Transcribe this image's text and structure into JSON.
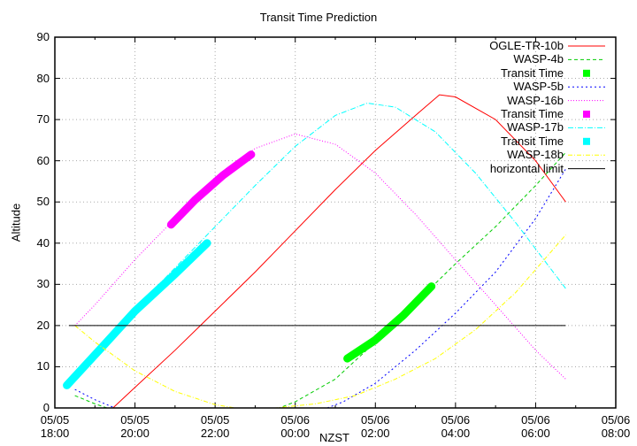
{
  "chart_data": {
    "type": "line",
    "title": "Transit Time Prediction",
    "xlabel": "NZST",
    "ylabel": "Altitude",
    "ylim": [
      0,
      90
    ],
    "yticks": [
      0,
      10,
      20,
      30,
      40,
      50,
      60,
      70,
      80,
      90
    ],
    "xlim_hours_from_start": [
      0,
      14
    ],
    "xticks": [
      {
        "h": 0,
        "date": "05/05",
        "time": "18:00"
      },
      {
        "h": 2,
        "date": "05/05",
        "time": "20:00"
      },
      {
        "h": 4,
        "date": "05/05",
        "time": "22:00"
      },
      {
        "h": 6,
        "date": "05/06",
        "time": "00:00"
      },
      {
        "h": 8,
        "date": "05/06",
        "time": "02:00"
      },
      {
        "h": 10,
        "date": "05/06",
        "time": "04:00"
      },
      {
        "h": 12,
        "date": "05/06",
        "time": "06:00"
      },
      {
        "h": 14,
        "date": "05/06",
        "time": "08:00"
      }
    ],
    "grid": true,
    "legend_position": "top-right",
    "series": [
      {
        "name": "OGLE-TR-10b",
        "kind": "line",
        "color": "#ff0000",
        "dash": "",
        "points": [
          [
            1.45,
            0
          ],
          [
            2,
            5
          ],
          [
            3,
            14
          ],
          [
            4,
            23.5
          ],
          [
            5,
            33
          ],
          [
            6,
            43
          ],
          [
            7,
            53
          ],
          [
            8,
            62.5
          ],
          [
            9,
            71
          ],
          [
            9.6,
            76
          ],
          [
            10,
            75.5
          ],
          [
            11,
            70
          ],
          [
            12,
            60
          ],
          [
            12.75,
            50
          ]
        ]
      },
      {
        "name": "WASP-4b",
        "kind": "line",
        "color": "#00cc00",
        "dash": "4,3",
        "points": [
          [
            0.5,
            3
          ],
          [
            1,
            1
          ],
          [
            1.3,
            0
          ],
          [
            5.6,
            0
          ],
          [
            6,
            1.5
          ],
          [
            7,
            7
          ],
          [
            8,
            16
          ],
          [
            9,
            25.5
          ],
          [
            10,
            35
          ],
          [
            11,
            44
          ],
          [
            12,
            54
          ],
          [
            12.75,
            62
          ]
        ]
      },
      {
        "name": "Transit Time",
        "kind": "transit",
        "color": "#00ff00",
        "for": "WASP-4b",
        "points": [
          [
            7.3,
            12
          ],
          [
            8,
            16.5
          ],
          [
            8.7,
            22.5
          ],
          [
            9.4,
            29.5
          ]
        ]
      },
      {
        "name": "WASP-5b",
        "kind": "line",
        "color": "#0000ff",
        "dash": "2,3",
        "points": [
          [
            0.5,
            4.5
          ],
          [
            1,
            2
          ],
          [
            1.5,
            0
          ],
          [
            6.8,
            0
          ],
          [
            7.2,
            1.5
          ],
          [
            8,
            6
          ],
          [
            9,
            14
          ],
          [
            10,
            23
          ],
          [
            11,
            33
          ],
          [
            12,
            46
          ],
          [
            12.75,
            58
          ]
        ]
      },
      {
        "name": "WASP-16b",
        "kind": "line",
        "color": "#ff00ff",
        "dash": "1,2",
        "points": [
          [
            0.5,
            20
          ],
          [
            1,
            25
          ],
          [
            2,
            36
          ],
          [
            3,
            46
          ],
          [
            4,
            56
          ],
          [
            5,
            63
          ],
          [
            6,
            66.5
          ],
          [
            7,
            64
          ],
          [
            8,
            57
          ],
          [
            9,
            47
          ],
          [
            10,
            36
          ],
          [
            11,
            25
          ],
          [
            12,
            14
          ],
          [
            12.75,
            7
          ]
        ]
      },
      {
        "name": "Transit Time",
        "kind": "transit",
        "color": "#ff00ff",
        "for": "WASP-16b",
        "points": [
          [
            2.9,
            44.5
          ],
          [
            3.5,
            50.5
          ],
          [
            4.2,
            56.5
          ],
          [
            4.9,
            61.5
          ]
        ]
      },
      {
        "name": "WASP-17b",
        "kind": "line",
        "color": "#00ffff",
        "dash": "6,2,1,2",
        "points": [
          [
            0.3,
            5
          ],
          [
            1,
            13
          ],
          [
            2,
            24
          ],
          [
            3,
            34
          ],
          [
            4,
            44
          ],
          [
            5,
            54
          ],
          [
            6,
            63.5
          ],
          [
            7,
            71
          ],
          [
            7.8,
            74
          ],
          [
            8.5,
            73
          ],
          [
            9.5,
            67
          ],
          [
            10.5,
            57
          ],
          [
            11.5,
            45
          ],
          [
            12.75,
            29
          ]
        ]
      },
      {
        "name": "Transit Time",
        "kind": "transit",
        "color": "#00ffff",
        "for": "WASP-17b",
        "points": [
          [
            0.3,
            5.5
          ],
          [
            1.2,
            15
          ],
          [
            2,
            23.5
          ],
          [
            3,
            32.5
          ],
          [
            3.8,
            40
          ]
        ]
      },
      {
        "name": "WASP-18b",
        "kind": "line",
        "color": "#ffff00",
        "dash": "5,2,1,2",
        "points": [
          [
            0.5,
            20
          ],
          [
            1,
            16
          ],
          [
            2,
            9
          ],
          [
            3,
            4
          ],
          [
            4,
            0.8
          ],
          [
            4.5,
            0
          ],
          [
            5.5,
            0
          ],
          [
            6.5,
            1
          ],
          [
            7.5,
            3
          ],
          [
            8.5,
            7
          ],
          [
            9.5,
            12
          ],
          [
            10.5,
            19
          ],
          [
            11.5,
            28
          ],
          [
            12.75,
            42
          ]
        ]
      },
      {
        "name": "horizontal limit",
        "kind": "line",
        "color": "#000000",
        "dash": "",
        "points": [
          [
            0.35,
            20
          ],
          [
            12.75,
            20
          ]
        ]
      }
    ]
  },
  "legend": [
    {
      "label": "OGLE-TR-10b"
    },
    {
      "label": "WASP-4b"
    },
    {
      "label": "Transit Time"
    },
    {
      "label": "WASP-5b"
    },
    {
      "label": "WASP-16b"
    },
    {
      "label": "Transit Time"
    },
    {
      "label": "WASP-17b"
    },
    {
      "label": "Transit Time"
    },
    {
      "label": "WASP-18b"
    },
    {
      "label": "horizontal limit"
    }
  ]
}
